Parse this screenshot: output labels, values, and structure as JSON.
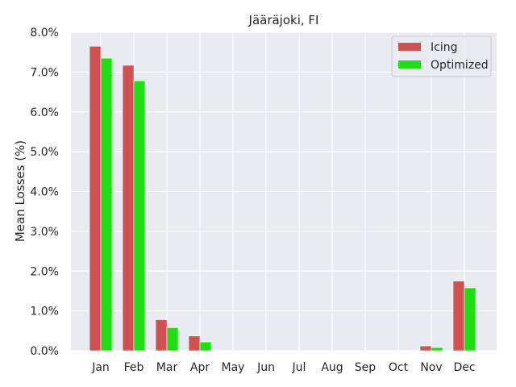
{
  "chart_data": {
    "type": "bar",
    "title": "Jääräjoki, FI",
    "xlabel": "",
    "ylabel": "Mean Losses (%)",
    "ylim": [
      0,
      8
    ],
    "yticks": [
      0,
      1,
      2,
      3,
      4,
      5,
      6,
      7,
      8
    ],
    "ytick_labels": [
      "0.0%",
      "1.0%",
      "2.0%",
      "3.0%",
      "4.0%",
      "5.0%",
      "6.0%",
      "7.0%",
      "8.0%"
    ],
    "grid": true,
    "legend_position": "top-right",
    "categories": [
      "Jan",
      "Feb",
      "Mar",
      "Apr",
      "May",
      "Jun",
      "Jul",
      "Aug",
      "Sep",
      "Oct",
      "Nov",
      "Dec"
    ],
    "series": [
      {
        "name": "Icing",
        "color": "#d05151",
        "values": [
          7.65,
          7.17,
          0.78,
          0.37,
          0,
          0,
          0,
          0,
          0,
          0,
          0.12,
          1.75
        ]
      },
      {
        "name": "Optimized",
        "color": "#22dd16",
        "values": [
          7.35,
          6.78,
          0.58,
          0.22,
          0,
          0,
          0,
          0,
          0,
          0,
          0.08,
          1.58
        ]
      }
    ]
  }
}
